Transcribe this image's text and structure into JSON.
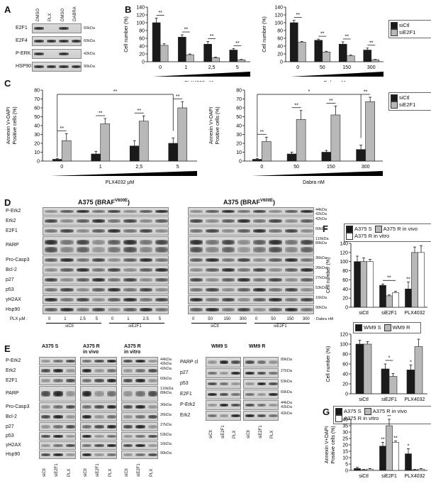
{
  "panels": {
    "A": "A",
    "B": "B",
    "C": "C",
    "D": "D",
    "E": "E",
    "F": "F",
    "G": "G"
  },
  "panelA": {
    "lanes": [
      "DMSO",
      "PLX",
      "DMSO",
      "DABRA"
    ],
    "rows": [
      {
        "label": "E2F1",
        "kda": "60kDa",
        "bands": [
          0.9,
          0.0,
          0.9,
          0.0
        ]
      },
      {
        "label": "E2F4",
        "kda": "60kDa",
        "bands": [
          0.9,
          0.9,
          0.9,
          0.9
        ]
      },
      {
        "label": "P-ERK",
        "kda": "42kDa",
        "bands": [
          0.9,
          0.0,
          0.9,
          0.0
        ]
      },
      {
        "label": "HSP90",
        "kda": "90kDa",
        "bands": [
          0.9,
          0.9,
          0.9,
          0.9
        ]
      }
    ]
  },
  "legend_siCtl": "siCtl",
  "legend_siE2F1": "siE2F1",
  "colors": {
    "dark": "#1a1a1a",
    "light": "#b8b8b8",
    "white": "#ffffff"
  },
  "chart_data": [
    {
      "id": "B1",
      "type": "bar",
      "categories": [
        "0",
        "1",
        "2,5",
        "5"
      ],
      "xlabel": "PLX4032 µM",
      "ylabel": "Cell number (%)",
      "ylim": [
        0,
        140
      ],
      "yticks": [
        0,
        20,
        40,
        60,
        80,
        100,
        120,
        140
      ],
      "series": [
        {
          "name": "siCtl",
          "values": [
            100,
            63,
            45,
            30
          ],
          "err": [
            12,
            6,
            7,
            4
          ]
        },
        {
          "name": "siE2F1",
          "values": [
            42,
            18,
            10,
            5
          ],
          "err": [
            4,
            2,
            2,
            1
          ]
        }
      ],
      "sig": [
        "**",
        "**",
        "**",
        "**"
      ]
    },
    {
      "id": "B2",
      "type": "bar",
      "categories": [
        "0",
        "50",
        "150",
        "300"
      ],
      "xlabel": "Dabra nM",
      "ylabel": "Cell number (%)",
      "ylim": [
        0,
        140
      ],
      "yticks": [
        0,
        20,
        40,
        60,
        80,
        100,
        120,
        140
      ],
      "series": [
        {
          "name": "siCtl",
          "values": [
            100,
            55,
            45,
            30
          ],
          "err": [
            6,
            3,
            6,
            5
          ]
        },
        {
          "name": "siE2F1",
          "values": [
            50,
            25,
            15,
            5
          ],
          "err": [
            2,
            2,
            2,
            1
          ]
        }
      ],
      "sig": [
        "**",
        "**",
        "**",
        "**"
      ]
    },
    {
      "id": "C1",
      "type": "bar",
      "categories": [
        "0",
        "1",
        "2,5",
        "5"
      ],
      "xlabel": "PLX4032 µM",
      "ylabel": "Annexin V+DAPI Positive cells (%)",
      "ylim": [
        0,
        80
      ],
      "yticks": [
        0,
        10,
        20,
        30,
        40,
        50,
        60,
        70,
        80
      ],
      "series": [
        {
          "name": "siCtl",
          "values": [
            2,
            8,
            17,
            20
          ],
          "err": [
            1,
            3,
            6,
            6
          ]
        },
        {
          "name": "siE2F1",
          "values": [
            23,
            42,
            45,
            60
          ],
          "err": [
            8,
            6,
            6,
            7
          ]
        }
      ],
      "sig": [
        "**",
        "**",
        "**",
        "**"
      ],
      "bracket": "**"
    },
    {
      "id": "C2",
      "type": "bar",
      "categories": [
        "0",
        "50",
        "150",
        "300"
      ],
      "xlabel": "Dabra nM",
      "ylabel": "Annexin V+DAPI Positive cells (%)",
      "ylim": [
        0,
        80
      ],
      "yticks": [
        0,
        10,
        20,
        30,
        40,
        50,
        60,
        70,
        80
      ],
      "series": [
        {
          "name": "siCtl",
          "values": [
            2,
            8,
            10,
            13
          ],
          "err": [
            1,
            2,
            2,
            5
          ]
        },
        {
          "name": "siE2F1",
          "values": [
            22,
            47,
            52,
            67
          ],
          "err": [
            5,
            10,
            10,
            5
          ]
        }
      ],
      "sig": [
        "**",
        "**",
        "**",
        "**"
      ],
      "bracket": "*"
    },
    {
      "id": "F1",
      "type": "bar",
      "categories": [
        "siCtl",
        "siE2F1",
        "PLX4032"
      ],
      "ylabel": "Cell number (%)",
      "ylim": [
        0,
        140
      ],
      "yticks": [
        0,
        20,
        40,
        60,
        80,
        100,
        120,
        140
      ],
      "series": [
        {
          "name": "A375 S",
          "values": [
            100,
            48,
            40
          ],
          "err": [
            12,
            3,
            15
          ]
        },
        {
          "name": "A375 R in vivo",
          "values": [
            100,
            25,
            120
          ],
          "err": [
            8,
            2,
            12
          ]
        },
        {
          "name": "A375 R in vitro",
          "values": [
            100,
            32,
            120
          ],
          "err": [
            5,
            3,
            15
          ]
        }
      ],
      "sig_labels": [
        "**",
        "**"
      ]
    },
    {
      "id": "F2",
      "type": "bar",
      "categories": [
        "siCtl",
        "siE2F1",
        "PLX4032"
      ],
      "ylabel": "Cell number (%)",
      "ylim": [
        0,
        120
      ],
      "yticks": [
        0,
        20,
        40,
        60,
        80,
        100,
        120
      ],
      "series": [
        {
          "name": "WM9 S",
          "values": [
            100,
            50,
            48
          ],
          "err": [
            8,
            10,
            10
          ]
        },
        {
          "name": "WM9 R",
          "values": [
            100,
            35,
            95
          ],
          "err": [
            5,
            6,
            15
          ]
        }
      ],
      "sig_labels": [
        "*",
        "*"
      ]
    },
    {
      "id": "G",
      "type": "bar",
      "categories": [
        "siCtl",
        "siE2F1",
        "PLX4032"
      ],
      "ylabel": "Annexin V+DAPI Positive cells (%)",
      "ylim": [
        0,
        40
      ],
      "yticks": [
        0,
        5,
        10,
        15,
        20,
        25,
        30,
        35,
        40
      ],
      "series": [
        {
          "name": "A375 S",
          "values": [
            1.5,
            19,
            13
          ],
          "err": [
            1,
            3,
            4
          ]
        },
        {
          "name": "A375 R in vivo",
          "values": [
            0.5,
            35,
            0.5
          ],
          "err": [
            0.3,
            5,
            0.3
          ]
        },
        {
          "name": "A375 R in vitro",
          "values": [
            1,
            22,
            1
          ],
          "err": [
            0.5,
            1,
            0.5
          ]
        }
      ],
      "sig_labels": [
        "**",
        "**",
        "**",
        "*"
      ]
    }
  ],
  "legendF1": [
    "A375 S",
    "A375 R in vivo",
    "A375 R in vitro"
  ],
  "legendF2": [
    "WM9 S",
    "WM9 R"
  ],
  "legendG": [
    "A375 S",
    "A375 R in vivo",
    "A375 R in vitro"
  ],
  "panelD": {
    "title_left": "A375 (BRAF",
    "title_sup": "V600E",
    "title_close": ")",
    "rows": [
      {
        "label": "P-Erk2",
        "kda": [
          "44kDa",
          "42kDa"
        ]
      },
      {
        "label": "Erk2",
        "kda": [
          "42kDa"
        ]
      },
      {
        "label": "E2F1",
        "kda": [
          "60kDa"
        ]
      },
      {
        "label": "PARP",
        "kda": [
          "116kDa",
          "89kDa"
        ]
      },
      {
        "label": "Pro-Casp3",
        "kda": [
          "36kDa"
        ]
      },
      {
        "label": "Bcl-2",
        "kda": [
          "26kDa"
        ]
      },
      {
        "label": "p27",
        "kda": [
          "27kDa"
        ]
      },
      {
        "label": "p53",
        "kda": [
          "53kDa"
        ]
      },
      {
        "label": "γH2AX",
        "kda": [
          "16kDa"
        ]
      },
      {
        "label": "Hsp90",
        "kda": [
          "90kDa"
        ]
      }
    ],
    "plx_prefix": "PLX µM :",
    "plx_doses": [
      "0",
      "1",
      "2.5",
      "5",
      "0",
      "1",
      "2.5",
      "5"
    ],
    "dabra_doses": [
      "0",
      "50",
      "150",
      "300",
      "0",
      "50",
      "150",
      "300"
    ],
    "dabra_suffix": ": Dabra nM",
    "group_left": "siCtl",
    "group_right": "siE2F1"
  },
  "panelE": {
    "a375_titles": [
      "A375 S",
      "A375 R\nin vivo",
      "A375 R\nin vitro"
    ],
    "a375_rows": [
      {
        "label": "P-Erk2",
        "kda": [
          "44kDa",
          "42kDa"
        ]
      },
      {
        "label": "Erk2",
        "kda": [
          "42kDa"
        ]
      },
      {
        "label": "E2F1",
        "kda": [
          "60kDa"
        ]
      },
      {
        "label": "PARP",
        "kda": [
          "116kDa",
          "89kDa"
        ]
      },
      {
        "label": "Pro-Casp3",
        "kda": [
          "36kDa"
        ]
      },
      {
        "label": "Bcl-2",
        "kda": [
          "26kDa"
        ]
      },
      {
        "label": "p27",
        "kda": [
          "27kDa"
        ]
      },
      {
        "label": "p53",
        "kda": [
          "53kDa"
        ]
      },
      {
        "label": "γH2AX",
        "kda": [
          "16kDa"
        ]
      },
      {
        "label": "Hsp90",
        "kda": [
          "90kDa"
        ]
      }
    ],
    "lanes": [
      "siCtl",
      "siE2F1",
      "PLX"
    ],
    "wm9_titles": [
      "WM9 S",
      "WM9 R"
    ],
    "wm9_rows": [
      {
        "label": "PARP cl",
        "kda": [
          "89kDa"
        ]
      },
      {
        "label": "p27",
        "kda": [
          "27kDa"
        ]
      },
      {
        "label": "p53",
        "kda": [
          "53kDa"
        ]
      },
      {
        "label": "E2F1",
        "kda": [
          "60kDa"
        ]
      },
      {
        "label": "P-Erk2",
        "kda": [
          "44kDa",
          "42kDa"
        ]
      },
      {
        "label": "Erk2",
        "kda": [
          "42kDa"
        ]
      }
    ]
  }
}
